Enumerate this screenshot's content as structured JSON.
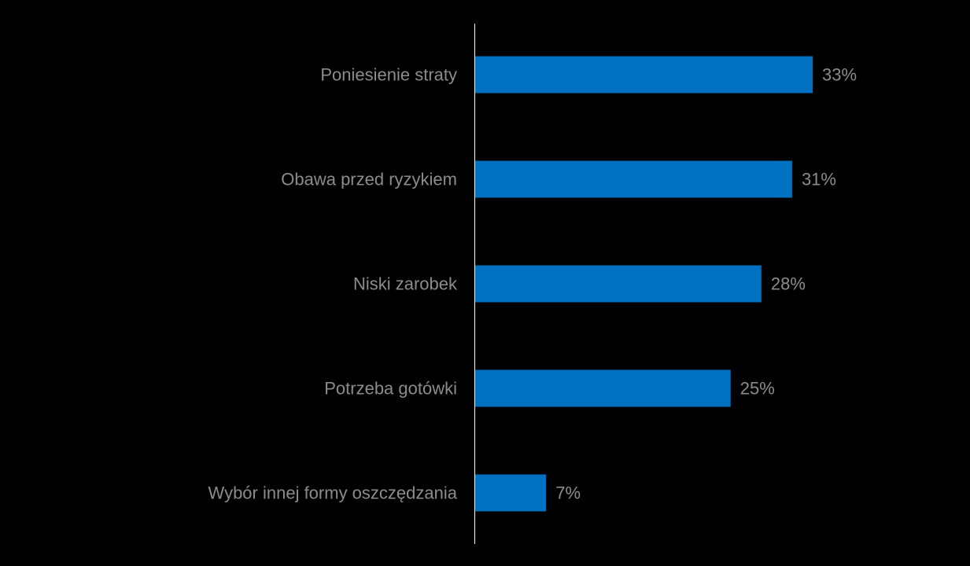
{
  "chart_data": {
    "type": "bar",
    "orientation": "horizontal",
    "categories": [
      "Poniesienie straty",
      "Obawa przed ryzykiem",
      "Niski zarobek",
      "Potrzeba gotówki",
      "Wybór innej formy oszczędzania"
    ],
    "values": [
      33,
      31,
      28,
      25,
      7
    ],
    "value_labels": [
      "33%",
      "31%",
      "28%",
      "25%",
      "7%"
    ],
    "title": "",
    "xlabel": "",
    "ylabel": "",
    "xlim": [
      0,
      33
    ],
    "grid": false,
    "legend": "none",
    "colors": {
      "bar": "#0070c0",
      "background": "#000000",
      "text": "#8c8c8c",
      "axis": "#ffffff"
    }
  }
}
